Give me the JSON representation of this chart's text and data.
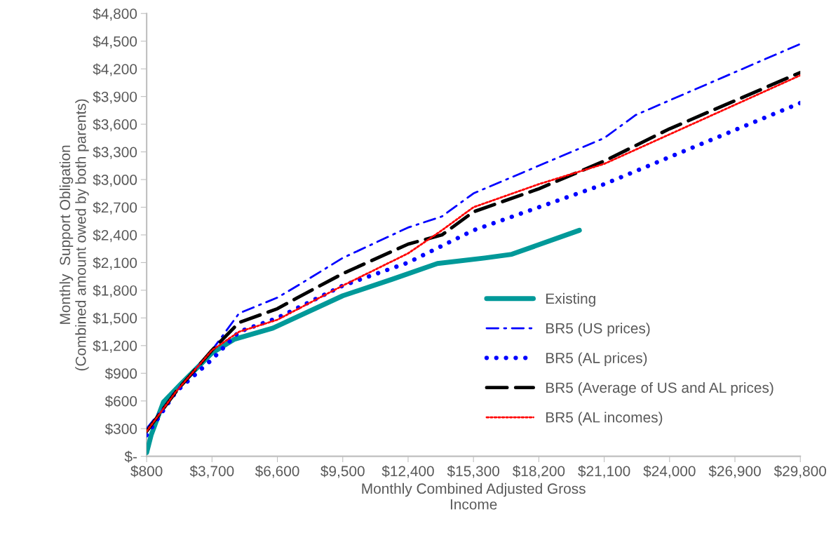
{
  "chart_data": {
    "type": "line",
    "xlabel": "Monthly Combined Adjusted Gross\nIncome",
    "ylabel": "Monthly  Support Obligation\n(Combined amount owed by both parents)",
    "xlim": [
      800,
      29800
    ],
    "ylim": [
      0,
      4800
    ],
    "xticks": [
      {
        "value": 800,
        "label": "$800"
      },
      {
        "value": 3700,
        "label": "$3,700"
      },
      {
        "value": 6600,
        "label": "$6,600"
      },
      {
        "value": 9500,
        "label": "$9,500"
      },
      {
        "value": 12400,
        "label": "$12,400"
      },
      {
        "value": 15300,
        "label": "$15,300"
      },
      {
        "value": 18200,
        "label": "$18,200"
      },
      {
        "value": 21100,
        "label": "$21,100"
      },
      {
        "value": 24000,
        "label": "$24,000"
      },
      {
        "value": 26900,
        "label": "$26,900"
      },
      {
        "value": 29800,
        "label": "$29,800"
      }
    ],
    "yticks": [
      {
        "value": 0,
        "label": "$-"
      },
      {
        "value": 300,
        "label": "$300"
      },
      {
        "value": 600,
        "label": "$600"
      },
      {
        "value": 900,
        "label": "$900"
      },
      {
        "value": 1200,
        "label": "$1,200"
      },
      {
        "value": 1500,
        "label": "$1,500"
      },
      {
        "value": 1800,
        "label": "$1,800"
      },
      {
        "value": 2100,
        "label": "$2,100"
      },
      {
        "value": 2400,
        "label": "$2,400"
      },
      {
        "value": 2700,
        "label": "$2,700"
      },
      {
        "value": 3000,
        "label": "$3,000"
      },
      {
        "value": 3300,
        "label": "$3,300"
      },
      {
        "value": 3600,
        "label": "$3,600"
      },
      {
        "value": 3900,
        "label": "$3,900"
      },
      {
        "value": 4200,
        "label": "$4,200"
      },
      {
        "value": 4500,
        "label": "$4,500"
      },
      {
        "value": 4800,
        "label": "$4,800"
      }
    ],
    "grid": false,
    "legend": "bottom right",
    "marker": "none",
    "series": [
      {
        "name": "Existing",
        "color": "#009999",
        "line_style": "solid",
        "x": [
          800,
          1000,
          1550,
          2300,
          3700,
          4700,
          6400,
          9500,
          11700,
          13700,
          15800,
          17000,
          20000
        ],
        "values": [
          40,
          230,
          590,
          780,
          1120,
          1270,
          1390,
          1740,
          1920,
          2090,
          2150,
          2190,
          2450
        ]
      },
      {
        "name": "BR5 (US prices)",
        "color": "#0000ff",
        "line_style": "dashdot",
        "x": [
          800,
          2100,
          3700,
          4900,
          6600,
          7500,
          9500,
          12400,
          13900,
          15300,
          18200,
          21100,
          22500,
          29800
        ],
        "values": [
          300,
          700,
          1150,
          1550,
          1720,
          1850,
          2150,
          2480,
          2600,
          2850,
          3150,
          3450,
          3700,
          4470
        ]
      },
      {
        "name": "BR5 (AL prices)",
        "color": "#0000ff",
        "line_style": "dotted",
        "x": [
          800,
          2100,
          3700,
          4900,
          6600,
          9500,
          12400,
          15300,
          18200,
          21100,
          29800
        ],
        "values": [
          230,
          700,
          1050,
          1350,
          1500,
          1850,
          2100,
          2450,
          2700,
          2950,
          3830
        ]
      },
      {
        "name": "BR5 (Average of US and AL prices)",
        "color": "#000000",
        "line_style": "dashed",
        "x": [
          800,
          2100,
          3700,
          4900,
          6600,
          7500,
          9500,
          12400,
          13900,
          15300,
          18200,
          21100,
          24000,
          29800
        ],
        "values": [
          270,
          700,
          1150,
          1450,
          1600,
          1720,
          1980,
          2300,
          2400,
          2650,
          2900,
          3200,
          3550,
          4160
        ]
      },
      {
        "name": "BR5 (AL incomes)",
        "color": "#ff0000",
        "line_style": "dotted",
        "x": [
          800,
          2100,
          3700,
          4900,
          6600,
          9500,
          12400,
          13900,
          15300,
          18200,
          21100,
          29800
        ],
        "values": [
          270,
          700,
          1150,
          1350,
          1480,
          1850,
          2200,
          2450,
          2700,
          2950,
          3170,
          4130
        ]
      }
    ]
  }
}
